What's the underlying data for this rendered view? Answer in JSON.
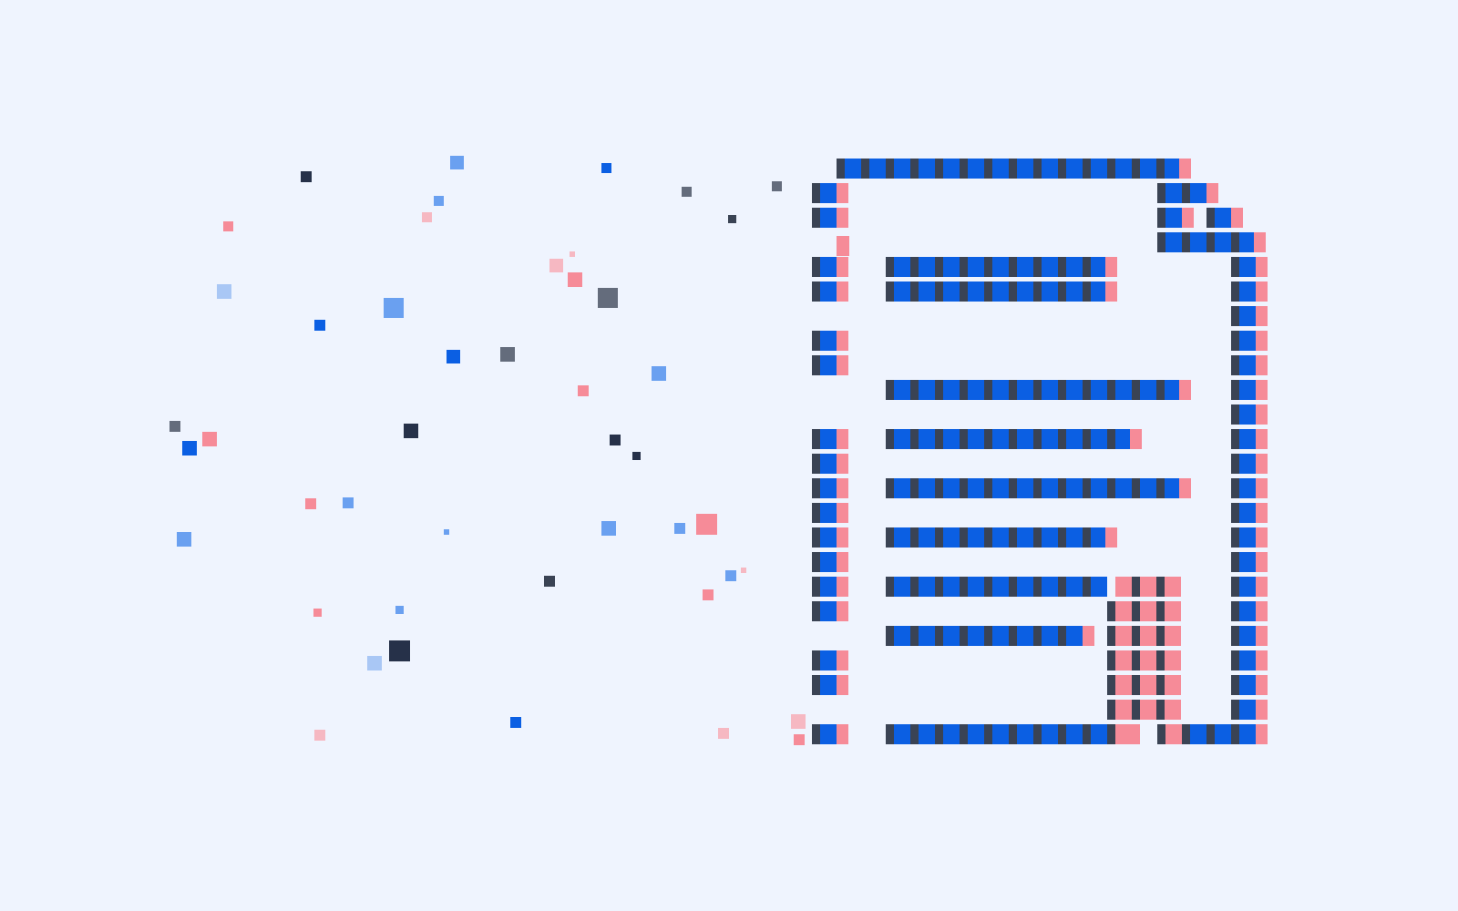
{
  "palette": {
    "background": "#eff4fe",
    "primary_blue": "#0b5fe3",
    "edge_dark": "#3a4354",
    "accent_pink": "#f68b98",
    "light_blue": "#6aa0f0",
    "pale_blue": "#a9c7f5",
    "navy": "#263149",
    "slate": "#646c7c",
    "light_pink": "#f6b8c2"
  },
  "illustration": {
    "subject": "pixelated-document-icon",
    "icon_name": "document-icon"
  }
}
